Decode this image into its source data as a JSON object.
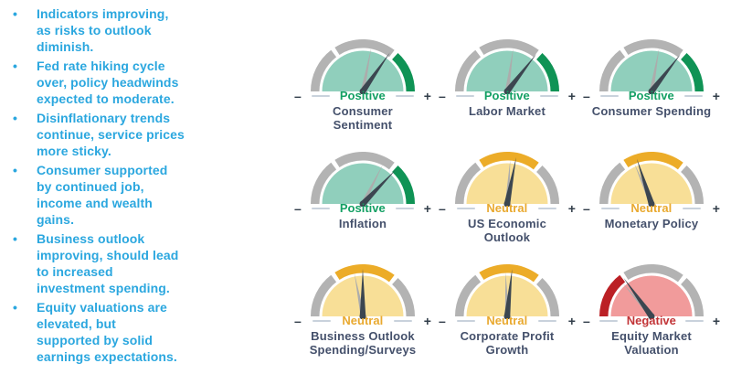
{
  "slide": {
    "bullet_color": "#2BA7DF",
    "bullet_glyph": "•",
    "bullets": [
      "Indicators improving,\nas risks to outlook\ndiminish.",
      "Fed rate hiking cycle\nover, policy headwinds\nexpected to moderate.",
      "Disinflationary trends\ncontinue, service prices\nmore sticky.",
      "Consumer supported\nby continued job,\nincome and wealth\ngains.",
      "Business outlook\nimproving, should lead\nto increased\ninvestment spending.",
      "Equity valuations are\nelevated, but\nsupported by solid\nearnings expectations."
    ]
  },
  "axis": {
    "minus_label": "–",
    "plus_label": "+"
  },
  "colors": {
    "ring_gray": "#B3B3B3",
    "needle": "#3C4650",
    "needle_shadow": "#ACACAC",
    "title_text": "#44506B",
    "sign_text": "#323E4A",
    "dash": "#C9D2DC",
    "positive": {
      "arc": "#0F9355",
      "fill": "#90CFBC",
      "label": "#14A064"
    },
    "neutral": {
      "arc": "#ECAC28",
      "fill": "#F8DF97",
      "label": "#E9A92F"
    },
    "negative": {
      "arc": "#BB2025",
      "fill": "#F19B9B",
      "label": "#C23437"
    }
  },
  "chart_data": {
    "type": "gauge",
    "layout": "3x3 grid of semicircular sentiment gauges",
    "scale_endpoints": [
      "–",
      "+"
    ],
    "needle_angle_convention": "degrees: 0 = far right (+), 90 = straight up, 180 = far left (–)",
    "gauges": [
      {
        "title": "Consumer\nSentiment",
        "reading": "Positive",
        "needle_deg": 55,
        "shadow_deg": 79
      },
      {
        "title": "Labor Market",
        "reading": "Positive",
        "needle_deg": 52,
        "shadow_deg": 82
      },
      {
        "title": "Consumer Spending",
        "reading": "Positive",
        "needle_deg": 52,
        "shadow_deg": 80
      },
      {
        "title": "Inflation",
        "reading": "Positive",
        "needle_deg": 46,
        "shadow_deg": 63
      },
      {
        "title": "US Economic\nOutlook",
        "reading": "Neutral",
        "needle_deg": 79,
        "shadow_deg": 86
      },
      {
        "title": "Monetary Policy",
        "reading": "Neutral",
        "needle_deg": 108,
        "shadow_deg": 113
      },
      {
        "title": "Business Outlook\nSpending/Surveys",
        "reading": "Neutral",
        "needle_deg": 90,
        "shadow_deg": 101
      },
      {
        "title": "Corporate Profit\nGrowth",
        "reading": "Neutral",
        "needle_deg": 84,
        "shadow_deg": 92
      },
      {
        "title": "Equity Market\nValuation",
        "reading": "Negative",
        "needle_deg": 126,
        "shadow_deg": 131
      }
    ]
  }
}
